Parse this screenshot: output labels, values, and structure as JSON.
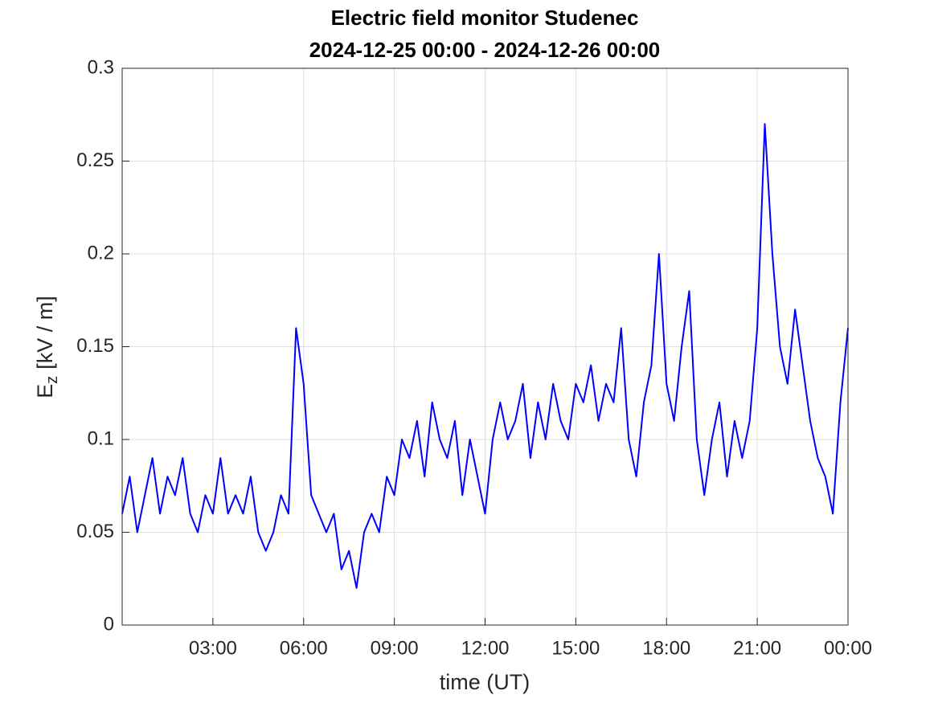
{
  "chart_data": {
    "type": "line",
    "title": "Electric field monitor Studenec",
    "subtitle": "2024-12-25 00:00 - 2024-12-26 00:00",
    "x_label": "time (UT)",
    "y_label": "E",
    "y_label_subscript": "z",
    "y_label_unit": "[kV / m]",
    "x": [
      0,
      0.25,
      0.5,
      0.75,
      1,
      1.25,
      1.5,
      1.75,
      2,
      2.25,
      2.5,
      2.75,
      3,
      3.25,
      3.5,
      3.75,
      4,
      4.25,
      4.5,
      4.75,
      5,
      5.25,
      5.5,
      5.75,
      6,
      6.25,
      6.5,
      6.75,
      7,
      7.25,
      7.5,
      7.75,
      8,
      8.25,
      8.5,
      8.75,
      9,
      9.25,
      9.5,
      9.75,
      10,
      10.25,
      10.5,
      10.75,
      11,
      11.25,
      11.5,
      11.75,
      12,
      12.25,
      12.5,
      12.75,
      13,
      13.25,
      13.5,
      13.75,
      14,
      14.25,
      14.5,
      14.75,
      15,
      15.25,
      15.5,
      15.75,
      16,
      16.25,
      16.5,
      16.75,
      17,
      17.25,
      17.5,
      17.75,
      18,
      18.25,
      18.5,
      18.75,
      19,
      19.25,
      19.5,
      19.75,
      20,
      20.25,
      20.5,
      20.75,
      21,
      21.25,
      21.5,
      21.75,
      22,
      22.25,
      22.5,
      22.75,
      23,
      23.25,
      23.5,
      23.75,
      24
    ],
    "series": [
      {
        "name": "Ez",
        "color": "#0000ff",
        "values": [
          0.06,
          0.08,
          0.05,
          0.07,
          0.09,
          0.06,
          0.08,
          0.07,
          0.09,
          0.06,
          0.05,
          0.07,
          0.06,
          0.09,
          0.06,
          0.07,
          0.06,
          0.08,
          0.05,
          0.04,
          0.05,
          0.07,
          0.06,
          0.16,
          0.13,
          0.07,
          0.06,
          0.05,
          0.06,
          0.03,
          0.04,
          0.02,
          0.05,
          0.06,
          0.05,
          0.08,
          0.07,
          0.1,
          0.09,
          0.11,
          0.08,
          0.12,
          0.1,
          0.09,
          0.11,
          0.07,
          0.1,
          0.08,
          0.06,
          0.1,
          0.12,
          0.1,
          0.11,
          0.13,
          0.09,
          0.12,
          0.1,
          0.13,
          0.11,
          0.1,
          0.13,
          0.12,
          0.14,
          0.11,
          0.13,
          0.12,
          0.16,
          0.1,
          0.08,
          0.12,
          0.14,
          0.2,
          0.13,
          0.11,
          0.15,
          0.18,
          0.1,
          0.07,
          0.1,
          0.12,
          0.08,
          0.11,
          0.09,
          0.11,
          0.16,
          0.27,
          0.2,
          0.15,
          0.13,
          0.17,
          0.14,
          0.11,
          0.09,
          0.08,
          0.06,
          0.12,
          0.16
        ]
      }
    ],
    "xlim": [
      0,
      24
    ],
    "xticks": [
      {
        "value": 3,
        "label": "03:00"
      },
      {
        "value": 6,
        "label": "06:00"
      },
      {
        "value": 9,
        "label": "09:00"
      },
      {
        "value": 12,
        "label": "12:00"
      },
      {
        "value": 15,
        "label": "15:00"
      },
      {
        "value": 18,
        "label": "18:00"
      },
      {
        "value": 21,
        "label": "21:00"
      },
      {
        "value": 24,
        "label": "00:00"
      }
    ],
    "ylim": [
      0,
      0.3
    ],
    "yticks": [
      0,
      0.05,
      0.1,
      0.15,
      0.2,
      0.25,
      0.3
    ],
    "grid": true
  }
}
